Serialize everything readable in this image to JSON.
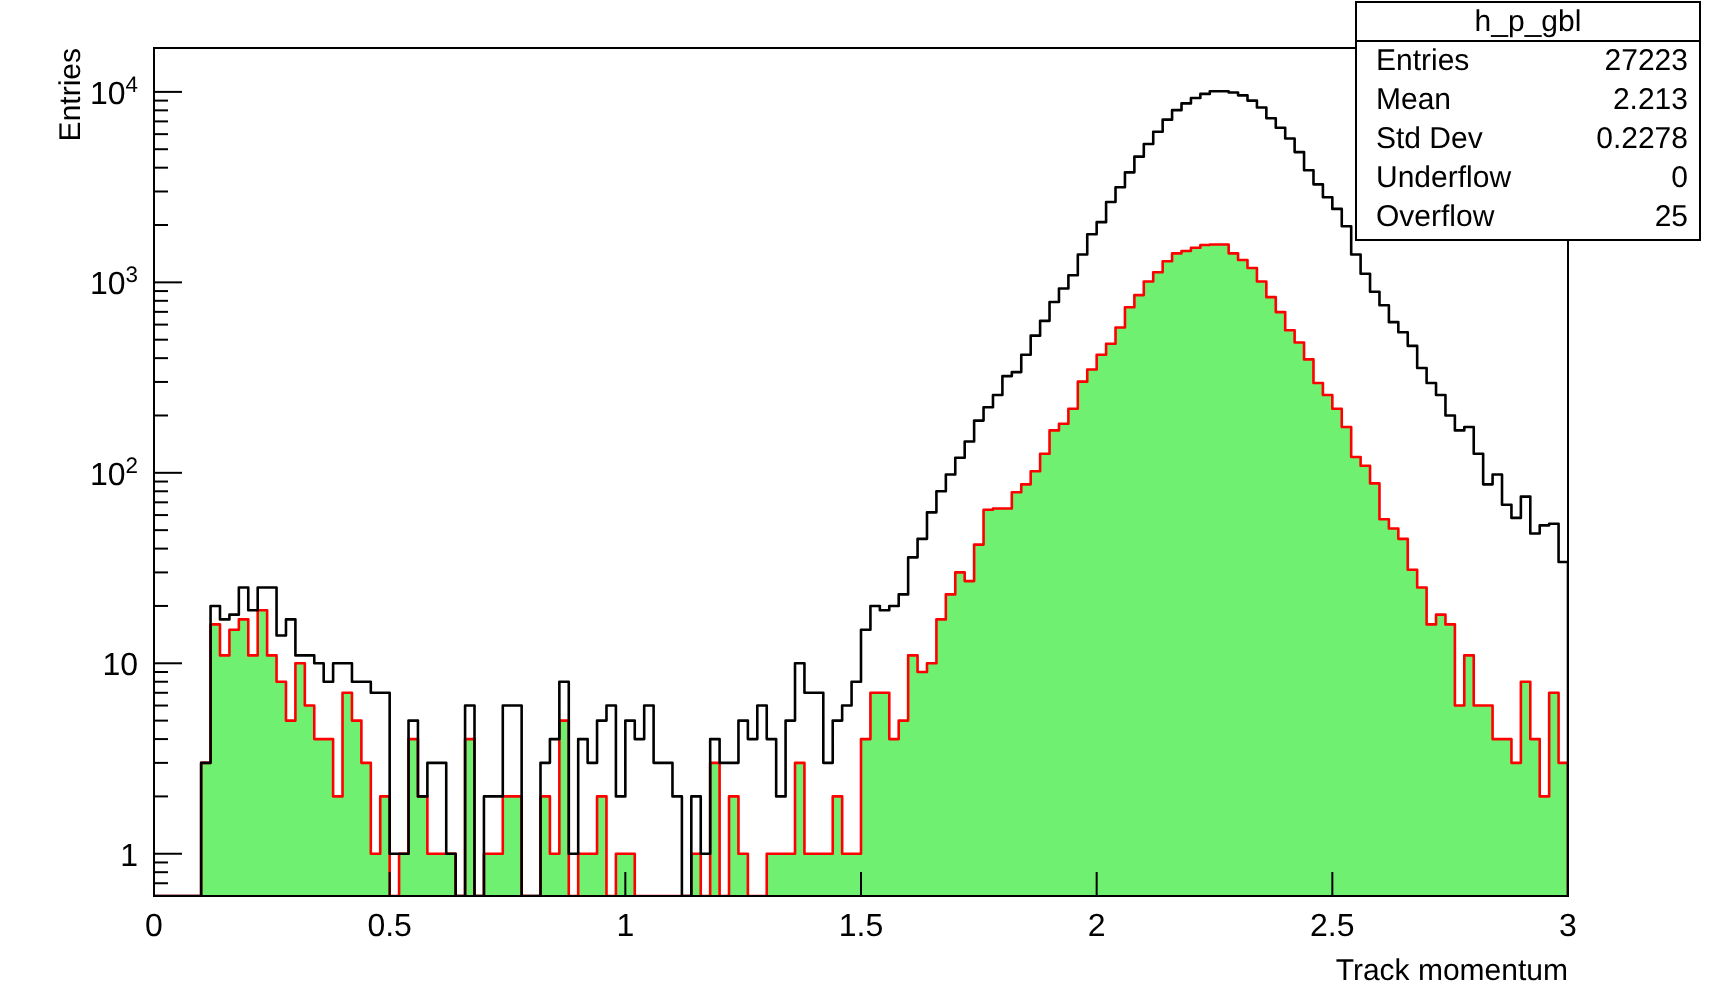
{
  "chart_data": {
    "type": "histogram",
    "xlabel": "Track momentum",
    "ylabel": "Entries",
    "log": true,
    "xlim": [
      0,
      3
    ],
    "xticks": [
      0,
      0.5,
      1,
      1.5,
      2,
      2.5,
      3
    ],
    "ylim": [
      0.6,
      17000
    ],
    "yticks": [
      {
        "value": 0.6,
        "label": null
      },
      {
        "value": 0.7,
        "label": null
      },
      {
        "value": 0.8,
        "label": null
      },
      {
        "value": 0.9,
        "label": null
      },
      1,
      {
        "value": 2,
        "label": null
      },
      {
        "value": 3,
        "label": null
      },
      {
        "value": 4,
        "label": null
      },
      {
        "value": 5,
        "label": null
      },
      {
        "value": 6,
        "label": null
      },
      {
        "value": 7,
        "label": null
      },
      {
        "value": 8,
        "label": null
      },
      {
        "value": 9,
        "label": null
      },
      10,
      {
        "value": 20,
        "label": null
      },
      {
        "value": 30,
        "label": null
      },
      {
        "value": 40,
        "label": null
      },
      {
        "value": 50,
        "label": null
      },
      {
        "value": 60,
        "label": null
      },
      {
        "value": 70,
        "label": null
      },
      {
        "value": 80,
        "label": null
      },
      {
        "value": 90,
        "label": null
      },
      {
        "value": 100,
        "label": "10$^{2}$"
      },
      {
        "value": 200,
        "label": null
      },
      {
        "value": 300,
        "label": null
      },
      {
        "value": 400,
        "label": null
      },
      {
        "value": 500,
        "label": null
      },
      {
        "value": 600,
        "label": null
      },
      {
        "value": 700,
        "label": null
      },
      {
        "value": 800,
        "label": null
      },
      {
        "value": 900,
        "label": null
      },
      {
        "value": 1000,
        "label": "10$^{3}$"
      },
      {
        "value": 2000,
        "label": null
      },
      {
        "value": 3000,
        "label": null
      },
      {
        "value": 4000,
        "label": null
      },
      {
        "value": 5000,
        "label": null
      },
      {
        "value": 6000,
        "label": null
      },
      {
        "value": 7000,
        "label": null
      },
      {
        "value": 8000,
        "label": null
      },
      {
        "value": 9000,
        "label": null
      },
      {
        "value": 10000,
        "label": "10$^{4}$"
      }
    ],
    "bins": [
      0,
      0.02,
      0.04,
      0.06,
      0.08,
      0.1,
      0.12,
      0.14,
      0.16,
      0.18,
      0.2,
      0.22,
      0.24,
      0.26,
      0.28,
      0.3,
      0.32,
      0.34,
      0.36,
      0.38,
      0.4,
      0.42,
      0.44,
      0.46,
      0.48,
      0.5,
      0.52,
      0.54,
      0.56,
      0.58,
      0.6,
      0.62,
      0.64,
      0.66,
      0.68,
      0.7,
      0.72,
      0.74,
      0.76,
      0.78,
      0.8,
      0.82,
      0.84,
      0.86,
      0.88,
      0.9,
      0.92,
      0.94,
      0.96,
      0.98,
      1,
      1.02,
      1.04,
      1.06,
      1.08,
      1.1,
      1.12,
      1.14,
      1.16,
      1.18,
      1.2,
      1.22,
      1.24,
      1.26,
      1.28,
      1.3,
      1.32,
      1.34,
      1.36,
      1.38,
      1.4,
      1.42,
      1.44,
      1.46,
      1.48,
      1.5,
      1.52,
      1.54,
      1.56,
      1.58,
      1.6,
      1.62,
      1.64,
      1.66,
      1.68,
      1.7,
      1.72,
      1.74,
      1.76,
      1.78,
      1.8,
      1.82,
      1.84,
      1.86,
      1.88,
      1.9,
      1.92,
      1.94,
      1.96,
      1.98,
      2,
      2.02,
      2.04,
      2.06,
      2.08,
      2.1,
      2.12,
      2.14,
      2.16,
      2.18,
      2.2,
      2.22,
      2.24,
      2.26,
      2.28,
      2.3,
      2.32,
      2.34,
      2.36,
      2.38,
      2.4,
      2.42,
      2.44,
      2.46,
      2.48,
      2.5,
      2.52,
      2.54,
      2.56,
      2.58,
      2.6,
      2.62,
      2.64,
      2.66,
      2.68,
      2.7,
      2.72,
      2.74,
      2.76,
      2.78,
      2.8,
      2.82,
      2.84,
      2.86,
      2.88,
      2.9,
      2.92,
      2.94,
      2.96,
      2.98,
      3
    ],
    "series": [
      {
        "color": "#70f070",
        "values": [
          null,
          null,
          null,
          null,
          null,
          3,
          16,
          11,
          15,
          17,
          11,
          19,
          11,
          8,
          5,
          10,
          6,
          4,
          4,
          2,
          7,
          5,
          3,
          1,
          2,
          null,
          1,
          4,
          2,
          1,
          1,
          1,
          null,
          4,
          null,
          1,
          1,
          2,
          2,
          null,
          null,
          2,
          1,
          5,
          null,
          1,
          1,
          2,
          null,
          1,
          1,
          null,
          null,
          null,
          null,
          null,
          null,
          1,
          null,
          3,
          null,
          2,
          1,
          null,
          null,
          1,
          1,
          1,
          3,
          1,
          1,
          1,
          2,
          1,
          1,
          4,
          7,
          7,
          4,
          5,
          11,
          9,
          10,
          17,
          23,
          30,
          27,
          42,
          64,
          65,
          65,
          79,
          87,
          102,
          126,
          167,
          181,
          217,
          301,
          349,
          417,
          476,
          579,
          740,
          857,
          1010,
          1130,
          1290,
          1420,
          1460,
          1520,
          1570,
          1580,
          1580,
          1420,
          1310,
          1190,
          1010,
          836,
          698,
          560,
          483,
          394,
          296,
          256,
          217,
          174,
          121,
          109,
          88,
          57,
          51,
          45,
          31,
          25,
          16,
          18,
          16,
          6,
          11,
          6,
          6,
          4,
          4,
          3,
          8,
          4,
          2,
          7,
          3
        ]
      },
      {
        "color": "#000000",
        "values": [
          null,
          null,
          null,
          null,
          null,
          3,
          20,
          17,
          18,
          25,
          19,
          25,
          25,
          14,
          17,
          11,
          11,
          10,
          8,
          10,
          10,
          8,
          8,
          7,
          7,
          1,
          1,
          5,
          2,
          3,
          3,
          1,
          null,
          6,
          null,
          2,
          2,
          6,
          6,
          null,
          null,
          3,
          4,
          8,
          1,
          4,
          3,
          5,
          6,
          2,
          5,
          4,
          6,
          3,
          3,
          2,
          null,
          2,
          1,
          4,
          3,
          3,
          5,
          4,
          6,
          4,
          2,
          5,
          10,
          7,
          7,
          3,
          5,
          6,
          8,
          15,
          20,
          19,
          20,
          23,
          36,
          45,
          62,
          80,
          98,
          120,
          146,
          188,
          221,
          256,
          322,
          338,
          417,
          525,
          628,
          789,
          929,
          1090,
          1400,
          1790,
          2070,
          2640,
          3160,
          3780,
          4570,
          5330,
          6180,
          7150,
          8020,
          8700,
          9290,
          9760,
          10080,
          10080,
          9930,
          9590,
          9000,
          8280,
          7270,
          6480,
          5690,
          4830,
          3880,
          3270,
          2800,
          2430,
          1970,
          1400,
          1110,
          892,
          758,
          618,
          547,
          464,
          355,
          296,
          256,
          200,
          167,
          174,
          126,
          87,
          98,
          68,
          58,
          75,
          48,
          53,
          54,
          34
        ]
      }
    ],
    "annotations": [
      "h_p_gbl",
      "Entries 27223",
      "Mean 2.213",
      "Std Dev 0.2278",
      "Underflow 0",
      "Overflow 25"
    ]
  }
}
